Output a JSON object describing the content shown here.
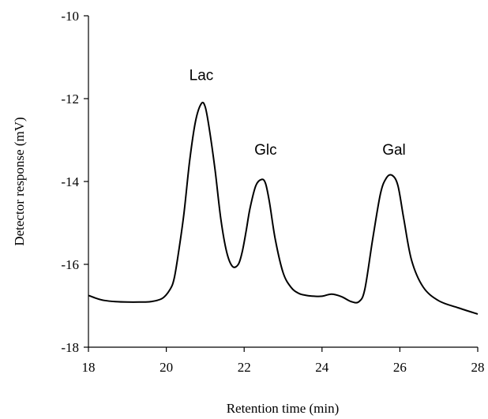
{
  "chart_data": {
    "type": "line",
    "title": "",
    "xlabel": "Retention time (min)",
    "ylabel": "Detector response (mV)",
    "xlim": [
      18,
      28
    ],
    "ylim": [
      -18,
      -10
    ],
    "x_ticks": [
      18,
      20,
      22,
      24,
      26,
      28
    ],
    "y_ticks": [
      -10,
      -12,
      -14,
      -16,
      -18
    ],
    "grid": false,
    "legend": "none",
    "line_color": "#000000",
    "series": [
      {
        "x": [
          18.0,
          18.2,
          18.4,
          18.7,
          19.0,
          19.3,
          19.6,
          19.9,
          20.1,
          20.2,
          20.3,
          20.45,
          20.6,
          20.75,
          20.9,
          21.0,
          21.1,
          21.25,
          21.4,
          21.55,
          21.7,
          21.85,
          21.95,
          22.05,
          22.15,
          22.3,
          22.45,
          22.55,
          22.65,
          22.8,
          23.0,
          23.2,
          23.4,
          23.6,
          23.8,
          24.0,
          24.25,
          24.5,
          24.75,
          24.95,
          25.1,
          25.3,
          25.5,
          25.65,
          25.8,
          25.95,
          26.1,
          26.3,
          26.6,
          27.0,
          27.5,
          28.0
        ],
        "y": [
          -16.75,
          -16.82,
          -16.87,
          -16.9,
          -16.91,
          -16.91,
          -16.9,
          -16.82,
          -16.6,
          -16.35,
          -15.8,
          -14.8,
          -13.5,
          -12.55,
          -12.12,
          -12.2,
          -12.7,
          -13.7,
          -14.9,
          -15.7,
          -16.05,
          -16.0,
          -15.7,
          -15.2,
          -14.65,
          -14.1,
          -13.95,
          -14.05,
          -14.5,
          -15.4,
          -16.2,
          -16.55,
          -16.7,
          -16.75,
          -16.77,
          -16.77,
          -16.72,
          -16.78,
          -16.9,
          -16.9,
          -16.6,
          -15.4,
          -14.3,
          -13.92,
          -13.85,
          -14.1,
          -14.9,
          -15.9,
          -16.55,
          -16.88,
          -17.05,
          -17.2
        ]
      }
    ],
    "annotations": [
      {
        "text": "Lac",
        "x": 20.9,
        "y": -11.55
      },
      {
        "text": "Glc",
        "x": 22.55,
        "y": -13.35
      },
      {
        "text": "Gal",
        "x": 25.85,
        "y": -13.35
      }
    ]
  }
}
